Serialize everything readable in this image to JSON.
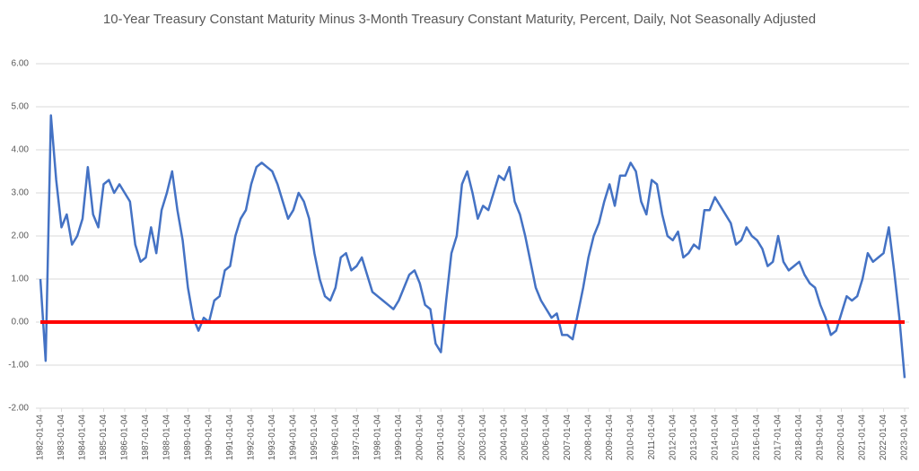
{
  "chart_data": {
    "type": "line",
    "title": "10-Year Treasury Constant Maturity Minus 3-Month Treasury Constant Maturity, Percent, Daily, Not Seasonally Adjusted",
    "x": [
      1982,
      1982.25,
      1982.5,
      1982.75,
      1983,
      1983.25,
      1983.5,
      1983.75,
      1984,
      1984.25,
      1984.5,
      1984.75,
      1985,
      1985.25,
      1985.5,
      1985.75,
      1986,
      1986.25,
      1986.5,
      1986.75,
      1987,
      1987.25,
      1987.5,
      1987.75,
      1988,
      1988.25,
      1988.5,
      1988.75,
      1989,
      1989.25,
      1989.5,
      1989.75,
      1990,
      1990.25,
      1990.5,
      1990.75,
      1991,
      1991.25,
      1991.5,
      1991.75,
      1992,
      1992.25,
      1992.5,
      1992.75,
      1993,
      1993.25,
      1993.5,
      1993.75,
      1994,
      1994.25,
      1994.5,
      1994.75,
      1995,
      1995.25,
      1995.5,
      1995.75,
      1996,
      1996.25,
      1996.5,
      1996.75,
      1997,
      1997.25,
      1997.5,
      1997.75,
      1998,
      1998.25,
      1998.5,
      1998.75,
      1999,
      1999.25,
      1999.5,
      1999.75,
      2000,
      2000.25,
      2000.5,
      2000.75,
      2001,
      2001.25,
      2001.5,
      2001.75,
      2002,
      2002.25,
      2002.5,
      2002.75,
      2003,
      2003.25,
      2003.5,
      2003.75,
      2004,
      2004.25,
      2004.5,
      2004.75,
      2005,
      2005.25,
      2005.5,
      2005.75,
      2006,
      2006.25,
      2006.5,
      2006.75,
      2007,
      2007.25,
      2007.5,
      2007.75,
      2008,
      2008.25,
      2008.5,
      2008.75,
      2009,
      2009.25,
      2009.5,
      2009.75,
      2010,
      2010.25,
      2010.5,
      2010.75,
      2011,
      2011.25,
      2011.5,
      2011.75,
      2012,
      2012.25,
      2012.5,
      2012.75,
      2013,
      2013.25,
      2013.5,
      2013.75,
      2014,
      2014.25,
      2014.5,
      2014.75,
      2015,
      2015.25,
      2015.5,
      2015.75,
      2016,
      2016.25,
      2016.5,
      2016.75,
      2017,
      2017.25,
      2017.5,
      2017.75,
      2018,
      2018.25,
      2018.5,
      2018.75,
      2019,
      2019.25,
      2019.5,
      2019.75,
      2020,
      2020.25,
      2020.5,
      2020.75,
      2021,
      2021.25,
      2021.5,
      2021.75,
      2022,
      2022.25,
      2022.5,
      2022.75,
      2023
    ],
    "series": [
      {
        "color": "#4472c4",
        "values": [
          1.0,
          -0.9,
          4.8,
          3.3,
          2.2,
          2.5,
          1.8,
          2.0,
          2.4,
          3.6,
          2.5,
          2.2,
          3.2,
          3.3,
          3.0,
          3.2,
          3.0,
          2.8,
          1.8,
          1.4,
          1.5,
          2.2,
          1.6,
          2.6,
          3.0,
          3.5,
          2.6,
          1.9,
          0.8,
          0.1,
          -0.2,
          0.1,
          0.0,
          0.5,
          0.6,
          1.2,
          1.3,
          2.0,
          2.4,
          2.6,
          3.2,
          3.6,
          3.7,
          3.6,
          3.5,
          3.2,
          2.8,
          2.4,
          2.6,
          3.0,
          2.8,
          2.4,
          1.6,
          1.0,
          0.6,
          0.5,
          0.8,
          1.5,
          1.6,
          1.2,
          1.3,
          1.5,
          1.1,
          0.7,
          0.6,
          0.5,
          0.4,
          0.3,
          0.5,
          0.8,
          1.1,
          1.2,
          0.9,
          0.4,
          0.3,
          -0.5,
          -0.7,
          0.5,
          1.6,
          2.0,
          3.2,
          3.5,
          3.0,
          2.4,
          2.7,
          2.6,
          3.0,
          3.4,
          3.3,
          3.6,
          2.8,
          2.5,
          2.0,
          1.4,
          0.8,
          0.5,
          0.3,
          0.1,
          0.2,
          -0.3,
          -0.3,
          -0.4,
          0.2,
          0.8,
          1.5,
          2.0,
          2.3,
          2.8,
          3.2,
          2.7,
          3.4,
          3.4,
          3.7,
          3.5,
          2.8,
          2.5,
          3.3,
          3.2,
          2.5,
          2.0,
          1.9,
          2.1,
          1.5,
          1.6,
          1.8,
          1.7,
          2.6,
          2.6,
          2.9,
          2.7,
          2.5,
          2.3,
          1.8,
          1.9,
          2.2,
          2.0,
          1.9,
          1.7,
          1.3,
          1.4,
          2.0,
          1.4,
          1.2,
          1.3,
          1.4,
          1.1,
          0.9,
          0.8,
          0.4,
          0.1,
          -0.3,
          -0.2,
          0.2,
          0.6,
          0.5,
          0.6,
          1.0,
          1.6,
          1.4,
          1.5,
          1.6,
          2.2,
          1.2,
          0.1,
          -1.3
        ]
      }
    ],
    "xlim": [
      1982,
      2023
    ],
    "xticks": [
      {
        "value": 1982,
        "label": "1982-01-04"
      },
      {
        "value": 1983,
        "label": "1983-01-04"
      },
      {
        "value": 1984,
        "label": "1984-01-04"
      },
      {
        "value": 1985,
        "label": "1985-01-04"
      },
      {
        "value": 1986,
        "label": "1986-01-04"
      },
      {
        "value": 1987,
        "label": "1987-01-04"
      },
      {
        "value": 1988,
        "label": "1988-01-04"
      },
      {
        "value": 1989,
        "label": "1989-01-04"
      },
      {
        "value": 1990,
        "label": "1990-01-04"
      },
      {
        "value": 1991,
        "label": "1991-01-04"
      },
      {
        "value": 1992,
        "label": "1992-01-04"
      },
      {
        "value": 1993,
        "label": "1993-01-04"
      },
      {
        "value": 1994,
        "label": "1994-01-04"
      },
      {
        "value": 1995,
        "label": "1995-01-04"
      },
      {
        "value": 1996,
        "label": "1996-01-04"
      },
      {
        "value": 1997,
        "label": "1997-01-04"
      },
      {
        "value": 1998,
        "label": "1998-01-04"
      },
      {
        "value": 1999,
        "label": "1999-01-04"
      },
      {
        "value": 2000,
        "label": "2000-01-04"
      },
      {
        "value": 2001,
        "label": "2001-01-04"
      },
      {
        "value": 2002,
        "label": "2002-01-04"
      },
      {
        "value": 2003,
        "label": "2003-01-04"
      },
      {
        "value": 2004,
        "label": "2004-01-04"
      },
      {
        "value": 2005,
        "label": "2005-01-04"
      },
      {
        "value": 2006,
        "label": "2006-01-04"
      },
      {
        "value": 2007,
        "label": "2007-01-04"
      },
      {
        "value": 2008,
        "label": "2008-01-04"
      },
      {
        "value": 2009,
        "label": "2009-01-04"
      },
      {
        "value": 2010,
        "label": "2010-01-04"
      },
      {
        "value": 2011,
        "label": "2011-01-04"
      },
      {
        "value": 2012,
        "label": "2012-01-04"
      },
      {
        "value": 2013,
        "label": "2013-01-04"
      },
      {
        "value": 2014,
        "label": "2014-01-04"
      },
      {
        "value": 2015,
        "label": "2015-01-04"
      },
      {
        "value": 2016,
        "label": "2016-01-04"
      },
      {
        "value": 2017,
        "label": "2017-01-04"
      },
      {
        "value": 2018,
        "label": "2018-01-04"
      },
      {
        "value": 2019,
        "label": "2019-01-04"
      },
      {
        "value": 2020,
        "label": "2020-01-04"
      },
      {
        "value": 2021,
        "label": "2021-01-04"
      },
      {
        "value": 2022,
        "label": "2022-01-04"
      },
      {
        "value": 2023,
        "label": "2023-01-04"
      }
    ],
    "ylim": [
      -2,
      6
    ],
    "yticks": [
      {
        "value": -2,
        "label": "-2.00"
      },
      {
        "value": -1,
        "label": "-1.00"
      },
      {
        "value": 0,
        "label": "0.00"
      },
      {
        "value": 1,
        "label": "1.00"
      },
      {
        "value": 2,
        "label": "2.00"
      },
      {
        "value": 3,
        "label": "3.00"
      },
      {
        "value": 4,
        "label": "4.00"
      },
      {
        "value": 5,
        "label": "5.00"
      },
      {
        "value": 6,
        "label": "6.00"
      }
    ],
    "grid": true,
    "reference_line": {
      "value": 0,
      "color": "#ff0000"
    }
  }
}
